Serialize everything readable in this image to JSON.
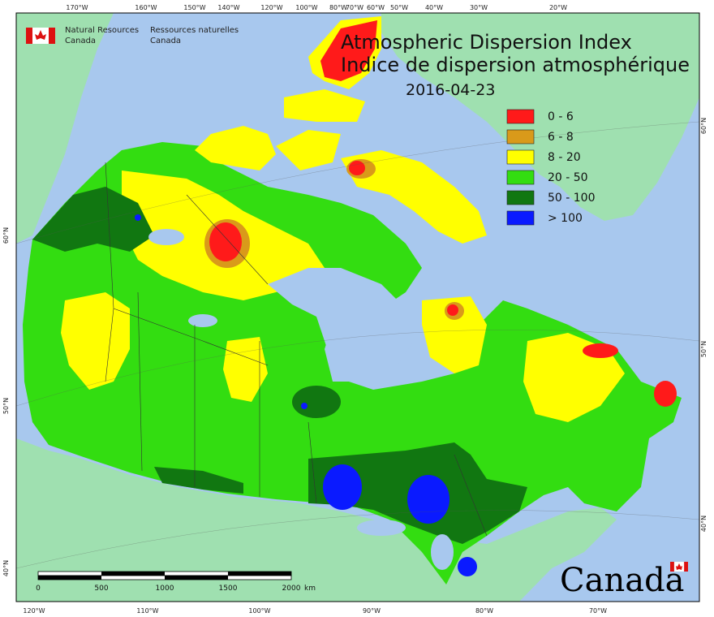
{
  "title_en": "Atmospheric Dispersion Index",
  "title_fr": "Indice de dispersion atmosphérique",
  "date": "2016-04-23",
  "org": {
    "en_line1": "Natural Resources",
    "en_line2": "Canada",
    "fr_line1": "Ressources naturelles",
    "fr_line2": "Canada"
  },
  "wordmark": "Canada",
  "legend": [
    {
      "label": "0 - 6",
      "color": "#ff1a1a"
    },
    {
      "label": "6 - 8",
      "color": "#d99a1a"
    },
    {
      "label": "8 - 20",
      "color": "#ffff00"
    },
    {
      "label": "20 - 50",
      "color": "#33dd11"
    },
    {
      "label": "50 - 100",
      "color": "#117711"
    },
    {
      "label": "> 100",
      "color": "#0a1aff"
    }
  ],
  "top_ticks": [
    "170°W",
    "160°W",
    "150°W",
    "140°W",
    "120°W",
    "100°W",
    "80°W",
    "70°W",
    "60°W",
    "50°W",
    "40°W",
    "30°W",
    "20°W"
  ],
  "bottom_ticks": [
    "120°W",
    "110°W",
    "100°W",
    "90°W",
    "80°W",
    "70°W"
  ],
  "left_ticks": [
    "60°N",
    "50°N",
    "40°N"
  ],
  "right_ticks": [
    "60°N",
    "50°N",
    "40°N"
  ],
  "scale_bar": {
    "labels": [
      "0",
      "500",
      "1000",
      "1500",
      "2000"
    ],
    "unit": "km"
  },
  "colors": {
    "ocean": "#a8c8ee",
    "foreign_land": "#9fe0b0",
    "lakes": "#a8c8ee"
  }
}
